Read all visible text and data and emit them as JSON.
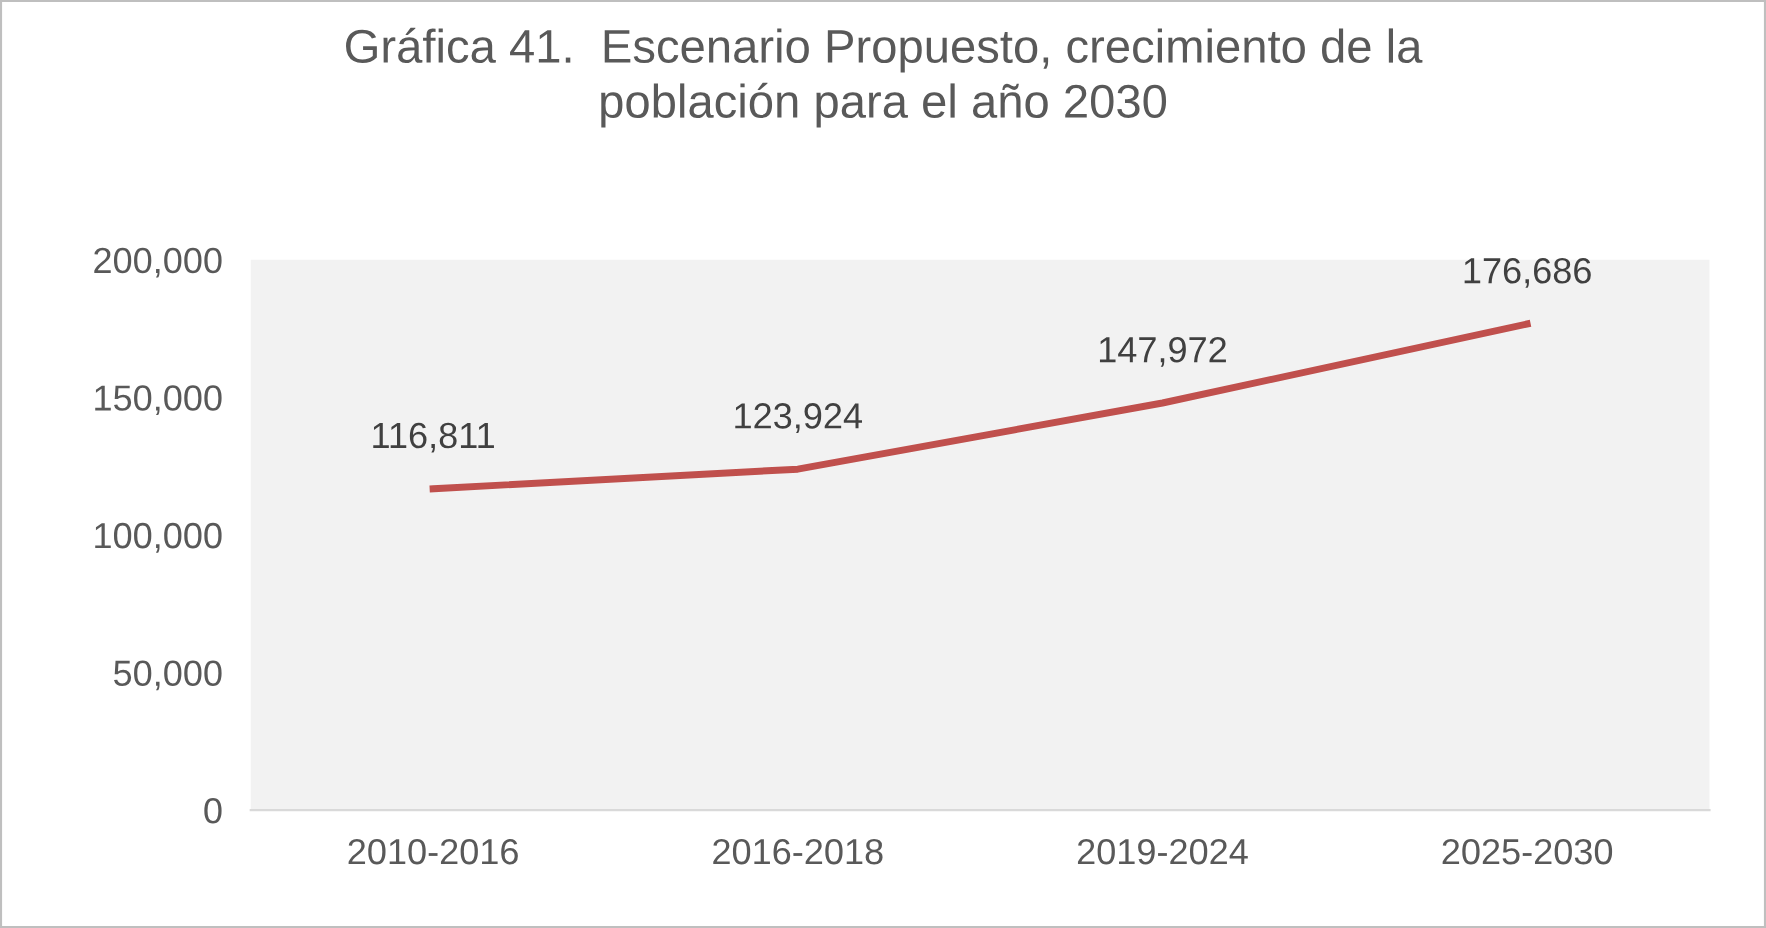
{
  "chart_data": {
    "type": "line",
    "title": "Gráfica 41.  Escenario Propuesto, crecimiento de la\npoblación para el año 2030",
    "categories": [
      "2010-2016",
      "2016-2018",
      "2019-2024",
      "2025-2030"
    ],
    "series": [
      {
        "color": "#c0504d",
        "values": [
          116811,
          123924,
          147972,
          176686
        ],
        "value_labels": [
          "116,811",
          "123,924",
          "147,972",
          "176,686"
        ]
      }
    ],
    "ylim": [
      0,
      200000
    ],
    "yticks": [
      {
        "value": 0,
        "label": "0"
      },
      {
        "value": 50000,
        "label": "50,000"
      },
      {
        "value": 100000,
        "label": "100,000"
      },
      {
        "value": 150000,
        "label": "150,000"
      },
      {
        "value": 200000,
        "label": "200,000"
      }
    ],
    "grid": false,
    "legend": false,
    "marker": "none",
    "line_style": "solid"
  }
}
